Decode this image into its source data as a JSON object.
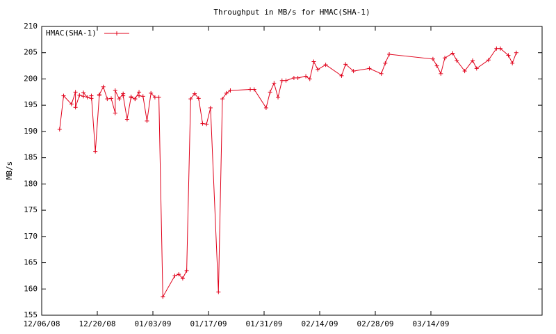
{
  "chart_data": {
    "type": "line",
    "title": "Throughput in MB/s for HMAC(SHA-1)",
    "ylabel": "MB/s",
    "x": [
      "12/10/08",
      "12/11/08",
      "12/13/08",
      "12/14/08",
      "12/14/08",
      "12/15/08",
      "12/16/08",
      "12/16/08",
      "12/17/08",
      "12/18/08",
      "12/18/08",
      "12/19/08",
      "12/20/08",
      "12/20/08",
      "12/21/08",
      "12/22/08",
      "12/23/08",
      "12/24/08",
      "12/24/08",
      "12/25/08",
      "12/26/08",
      "12/26/08",
      "12/27/08",
      "12/28/08",
      "12/28/08",
      "12/29/08",
      "12/29/08",
      "12/30/08",
      "12/30/08",
      "12/31/08",
      "01/01/09",
      "01/02/09",
      "01/03/09",
      "01/04/09",
      "01/05/09",
      "01/08/09",
      "01/09/09",
      "01/10/09",
      "01/11/09",
      "01/12/09",
      "01/13/09",
      "01/14/09",
      "01/15/09",
      "01/16/09",
      "01/17/09",
      "01/19/09",
      "01/20/09",
      "01/21/09",
      "01/22/09",
      "01/27/09",
      "01/28/09",
      "01/31/09",
      "02/01/09",
      "02/02/09",
      "02/03/09",
      "02/04/09",
      "02/05/09",
      "02/07/09",
      "02/08/09",
      "02/10/09",
      "02/11/09",
      "02/12/09",
      "02/13/09",
      "02/15/09",
      "02/19/09",
      "02/20/09",
      "02/22/09",
      "02/26/09",
      "03/01/09",
      "03/02/09",
      "03/03/09",
      "03/14/09",
      "03/15/09",
      "03/16/09",
      "03/17/09",
      "03/19/09",
      "03/20/09",
      "03/22/09",
      "03/24/09",
      "03/25/09",
      "03/28/09",
      "03/30/09",
      "03/31/09",
      "04/02/09",
      "04/03/09",
      "04/04/09"
    ],
    "series": [
      {
        "name": "HMAC(SHA-1)",
        "color": "#e0001a",
        "values": [
          190.4,
          196.8,
          195.2,
          197.5,
          194.6,
          196.9,
          196.7,
          197.4,
          196.5,
          196.3,
          196.8,
          186.2,
          196.9,
          197,
          198.5,
          196.2,
          196.3,
          193.5,
          197.8,
          196.2,
          197.2,
          196.8,
          192.3,
          196.6,
          196.5,
          196.2,
          196.2,
          197.5,
          196.8,
          196.7,
          192,
          197.3,
          196.5,
          196.5,
          158.5,
          162.5,
          162.8,
          162,
          163.5,
          196.2,
          197.2,
          196.3,
          191.5,
          191.4,
          194.5,
          159.4,
          196.2,
          197.3,
          197.8,
          198,
          198,
          194.5,
          197.5,
          199.2,
          196.5,
          199.7,
          199.7,
          200.2,
          200.2,
          200.5,
          200,
          203.3,
          201.8,
          202.7,
          200.6,
          202.8,
          201.5,
          202,
          201,
          203,
          204.7,
          203.8,
          202.5,
          201,
          204,
          204.9,
          203.5,
          201.5,
          203.5,
          202,
          203.6,
          205.8,
          205.8,
          204.5,
          203,
          205
        ]
      }
    ],
    "xlim": [
      "12/06/08",
      "04/11/09"
    ],
    "xticks": [
      "12/06/08",
      "12/20/08",
      "01/03/09",
      "01/17/09",
      "01/31/09",
      "02/14/09",
      "02/28/09",
      "03/14/09"
    ],
    "ylim": [
      155,
      210
    ],
    "yticks": [
      155,
      160,
      165,
      170,
      175,
      180,
      185,
      190,
      195,
      200,
      205,
      210
    ],
    "legend": "top-left"
  }
}
